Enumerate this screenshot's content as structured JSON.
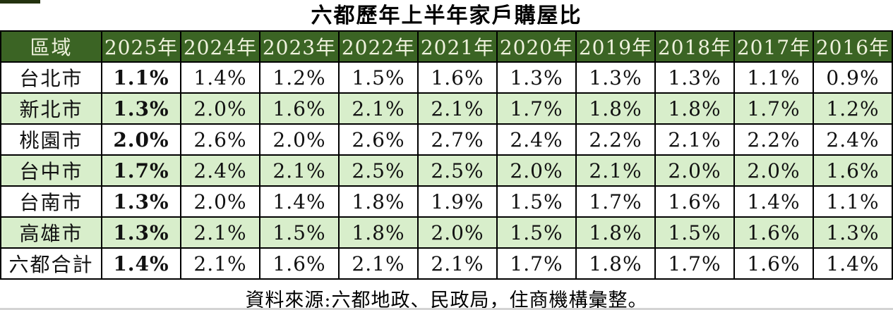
{
  "title": "六都歷年上半年家戶購屋比",
  "footer": {
    "source_note": "資料來源:六都地政、民政局，住商機構彙整。"
  },
  "colors": {
    "header_bg": "#3B6424",
    "header_text": "#EFF2DD",
    "row_bg": "#FFFFFF",
    "row_alt_bg": "#D8EECB",
    "border": "#000000",
    "text": "#111111",
    "top_sliver": "#23320F"
  },
  "chart_data": {
    "type": "table",
    "title": "六都歷年上半年家戶購屋比",
    "columns": [
      "區域",
      "2025年",
      "2024年",
      "2023年",
      "2022年",
      "2021年",
      "2020年",
      "2019年",
      "2018年",
      "2017年",
      "2016年"
    ],
    "rows": [
      {
        "label": "台北市",
        "values": [
          "1.1%",
          "1.4%",
          "1.2%",
          "1.5%",
          "1.6%",
          "1.3%",
          "1.3%",
          "1.3%",
          "1.1%",
          "0.9%"
        ]
      },
      {
        "label": "新北市",
        "values": [
          "1.3%",
          "2.0%",
          "1.6%",
          "2.1%",
          "2.1%",
          "1.7%",
          "1.8%",
          "1.8%",
          "1.7%",
          "1.2%"
        ]
      },
      {
        "label": "桃園市",
        "values": [
          "2.0%",
          "2.6%",
          "2.0%",
          "2.6%",
          "2.7%",
          "2.4%",
          "2.2%",
          "2.1%",
          "2.2%",
          "2.4%"
        ]
      },
      {
        "label": "台中市",
        "values": [
          "1.7%",
          "2.4%",
          "2.1%",
          "2.5%",
          "2.5%",
          "2.0%",
          "2.1%",
          "2.0%",
          "2.0%",
          "1.6%"
        ]
      },
      {
        "label": "台南市",
        "values": [
          "1.3%",
          "2.0%",
          "1.4%",
          "1.8%",
          "1.9%",
          "1.5%",
          "1.7%",
          "1.6%",
          "1.4%",
          "1.1%"
        ]
      },
      {
        "label": "高雄市",
        "values": [
          "1.3%",
          "2.1%",
          "1.5%",
          "1.8%",
          "2.0%",
          "1.5%",
          "1.8%",
          "1.5%",
          "1.6%",
          "1.3%"
        ]
      },
      {
        "label": "六都合計",
        "values": [
          "1.4%",
          "2.1%",
          "1.6%",
          "2.1%",
          "2.1%",
          "1.7%",
          "1.8%",
          "1.7%",
          "1.6%",
          "1.4%"
        ]
      }
    ],
    "layout": {
      "emphasized_column": "2025年",
      "alternating_row_shading": true,
      "grid": true,
      "source_note_position": "bottom-center"
    }
  }
}
